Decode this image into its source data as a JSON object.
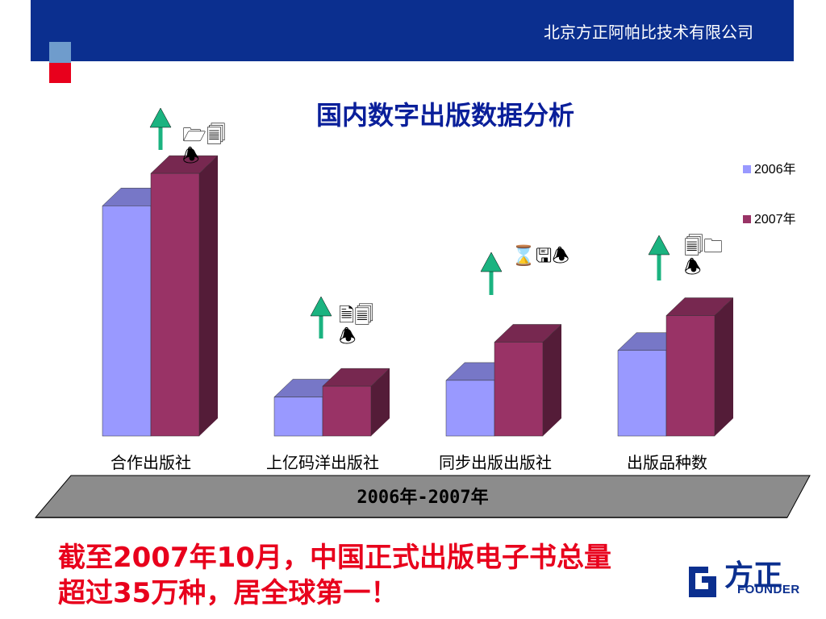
{
  "header": {
    "company": "北京方正阿帕比技术有限公司"
  },
  "colors": {
    "header_bar": "#0b2f8f",
    "series_2006": "#9999ff",
    "series_2007": "#993366",
    "arrow": "#1bb380",
    "callout": "#e8001c"
  },
  "chart_data": {
    "type": "bar",
    "title": "国内数字出版数据分析",
    "categories": [
      "合作出版社",
      "上亿码洋出版社",
      "同步出版出版社",
      "出版品种数"
    ],
    "series": [
      {
        "name": "2006年",
        "values": [
          277,
          47,
          67,
          103
        ]
      },
      {
        "name": "2007年",
        "values": [
          316,
          60,
          113,
          145
        ]
      }
    ],
    "ylim": [
      0,
      320
    ],
    "legend_position": "right",
    "grid": false,
    "period_label": "2006年-2007年",
    "annotations": [
      {
        "category": "合作出版社",
        "icon": "up-arrow",
        "symbols": "🗁🗐🕭"
      },
      {
        "category": "上亿码洋出版社",
        "icon": "up-arrow",
        "symbols": "🗎🗐🕭"
      },
      {
        "category": "同步出版出版社",
        "icon": "up-arrow",
        "symbols": "⌛🖫🕭"
      },
      {
        "category": "出版品种数",
        "icon": "up-arrow",
        "symbols": "🗐🗀🕭"
      }
    ]
  },
  "callout": {
    "line1": "截至2007年10月，中国正式出版电子书总量",
    "line2": "超过35万种，居全球第一！"
  },
  "logo": {
    "cn": "方正",
    "en": "FOUNDER"
  }
}
